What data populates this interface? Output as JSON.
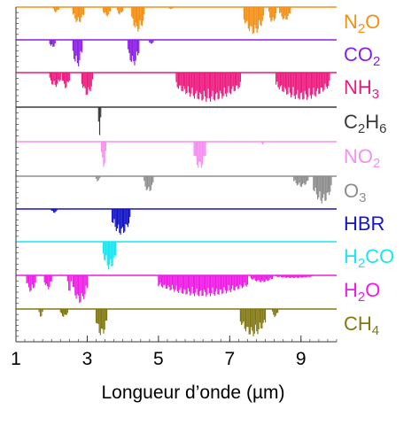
{
  "chart_data": {
    "type": "area",
    "xlabel": "Longueur d’onde (µm)",
    "xlim": [
      1,
      10
    ],
    "xticks": [
      "1",
      "3",
      "5",
      "7",
      "9"
    ],
    "tick_values": [
      1,
      3,
      5,
      7,
      9
    ],
    "panels": [
      {
        "name": "N2O",
        "sub": [
          {
            "t": "N"
          },
          {
            "t": "2",
            "s": true
          },
          {
            "t": "O"
          }
        ],
        "color": "#f39015",
        "bands": [
          [
            2.05,
            2.2,
            0.2
          ],
          [
            2.6,
            2.9,
            0.6
          ],
          [
            3.45,
            3.65,
            0.35
          ],
          [
            3.85,
            4.0,
            0.3
          ],
          [
            4.25,
            4.6,
            0.9
          ],
          [
            5.3,
            5.4,
            0.1
          ],
          [
            7.4,
            7.95,
            1.0
          ],
          [
            8.1,
            8.3,
            0.6
          ],
          [
            8.4,
            8.7,
            0.5
          ]
        ]
      },
      {
        "name": "CO2",
        "sub": [
          {
            "t": "CO"
          },
          {
            "t": "2",
            "s": true
          }
        ],
        "color": "#8a1ee6",
        "bands": [
          [
            1.95,
            2.1,
            0.3
          ],
          [
            2.6,
            2.85,
            1.0
          ],
          [
            4.15,
            4.45,
            0.95
          ],
          [
            4.75,
            4.85,
            0.2
          ]
        ]
      },
      {
        "name": "NH3",
        "sub": [
          {
            "t": "NH"
          },
          {
            "t": "3",
            "s": true
          }
        ],
        "color": "#ec1b7f",
        "bands": [
          [
            1.95,
            2.25,
            0.5
          ],
          [
            2.3,
            2.5,
            0.55
          ],
          [
            2.85,
            3.15,
            0.8
          ],
          [
            5.5,
            7.3,
            1.0
          ],
          [
            8.3,
            9.8,
            0.95
          ]
        ]
      },
      {
        "name": "C2H6",
        "sub": [
          {
            "t": "C"
          },
          {
            "t": "2",
            "s": true
          },
          {
            "t": "H"
          },
          {
            "t": "6",
            "s": true
          }
        ],
        "color": "#3a3a3a",
        "bands": [
          [
            3.32,
            3.38,
            1.0
          ]
        ]
      },
      {
        "name": "NO2",
        "sub": [
          {
            "t": "NO"
          },
          {
            "t": "2",
            "s": true
          }
        ],
        "color": "#f58ff0",
        "bands": [
          [
            3.4,
            3.52,
            0.9
          ],
          [
            6.0,
            6.32,
            0.95
          ],
          [
            7.9,
            7.95,
            0.1
          ]
        ]
      },
      {
        "name": "O3",
        "sub": [
          {
            "t": "O"
          },
          {
            "t": "3",
            "s": true
          }
        ],
        "color": "#8e8e8e",
        "bands": [
          [
            3.25,
            3.35,
            0.2
          ],
          [
            4.6,
            4.85,
            0.6
          ],
          [
            8.8,
            9.2,
            0.4
          ],
          [
            9.35,
            9.85,
            1.0
          ]
        ]
      },
      {
        "name": "HBR",
        "sub": [
          {
            "t": "HBR"
          }
        ],
        "color": "#1414c8",
        "bands": [
          [
            2.0,
            2.15,
            0.15
          ],
          [
            3.7,
            4.2,
            0.95
          ]
        ]
      },
      {
        "name": "H2CO",
        "sub": [
          {
            "t": "H"
          },
          {
            "t": "2",
            "s": true
          },
          {
            "t": "CO"
          }
        ],
        "color": "#19e6f0",
        "bands": [
          [
            3.45,
            3.8,
            1.0
          ]
        ]
      },
      {
        "name": "H2O",
        "sub": [
          {
            "t": "H"
          },
          {
            "t": "2",
            "s": true
          },
          {
            "t": "O"
          }
        ],
        "color": "#ee1be6",
        "bands": [
          [
            1.3,
            1.55,
            0.6
          ],
          [
            1.8,
            2.0,
            0.5
          ],
          [
            2.45,
            2.55,
            0.6
          ],
          [
            2.6,
            3.0,
            1.0
          ],
          [
            5.0,
            7.5,
            0.75
          ],
          [
            7.6,
            8.2,
            0.25
          ],
          [
            8.3,
            9.3,
            0.1
          ]
        ]
      },
      {
        "name": "CH4",
        "sub": [
          {
            "t": "CH"
          },
          {
            "t": "4",
            "s": true
          }
        ],
        "color": "#827813",
        "bands": [
          [
            1.65,
            1.75,
            0.3
          ],
          [
            2.25,
            2.45,
            0.3
          ],
          [
            3.25,
            3.55,
            1.0
          ],
          [
            7.3,
            8.0,
            1.0
          ],
          [
            8.2,
            8.35,
            0.3
          ]
        ]
      }
    ]
  }
}
